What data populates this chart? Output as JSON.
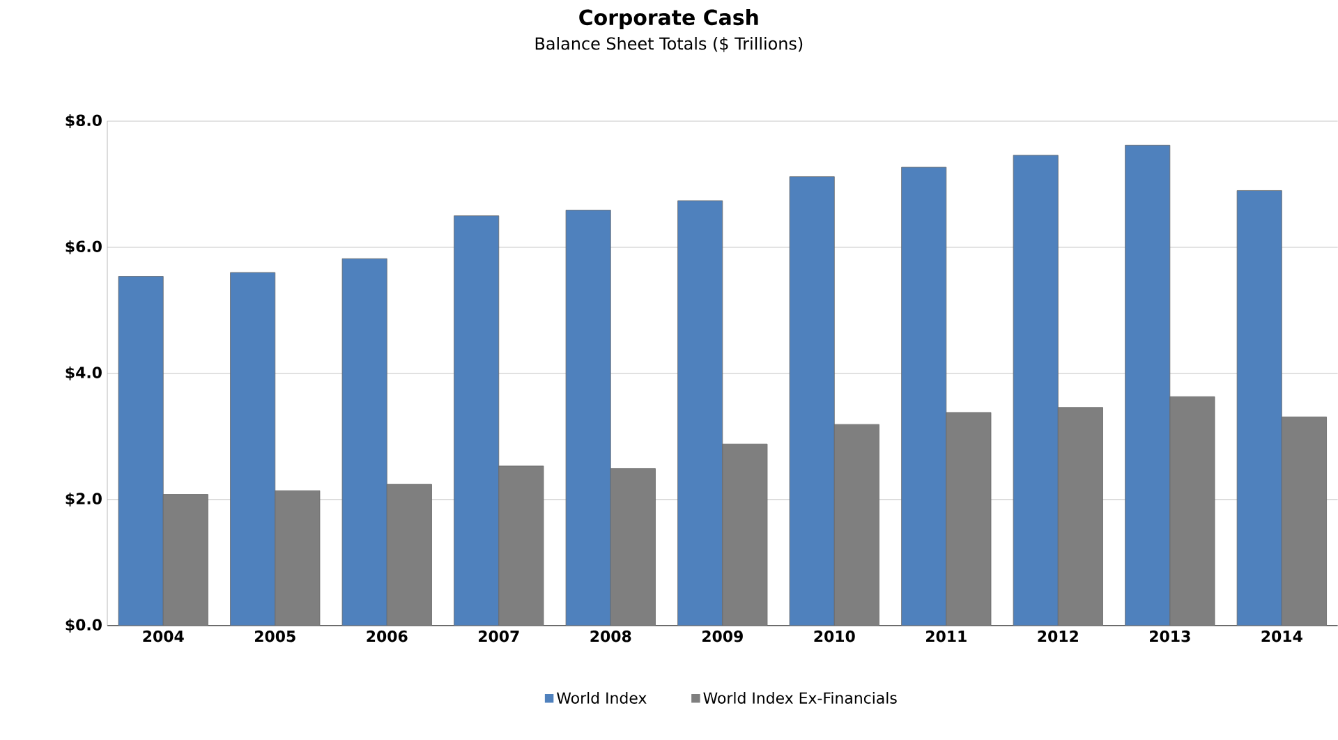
{
  "chart_data": {
    "type": "bar",
    "title": "Corporate Cash",
    "subtitle": "Balance Sheet Totals ($ Trillions)",
    "categories": [
      "2004",
      "2005",
      "2006",
      "2007",
      "2008",
      "2009",
      "2010",
      "2011",
      "2012",
      "2013",
      "2014"
    ],
    "series": [
      {
        "name": "World Index",
        "color": "#4f81bd",
        "values": [
          5.54,
          5.6,
          5.82,
          6.5,
          6.59,
          6.74,
          7.12,
          7.27,
          7.46,
          7.62,
          6.9
        ]
      },
      {
        "name": "World Index Ex-Financials",
        "color": "#7f7f7f",
        "values": [
          2.08,
          2.14,
          2.24,
          2.53,
          2.49,
          2.88,
          3.19,
          3.38,
          3.46,
          3.63,
          3.31
        ]
      }
    ],
    "ylim": [
      0,
      8
    ],
    "yticks": [
      {
        "value": 0,
        "label": "$0.0"
      },
      {
        "value": 2,
        "label": "$2.0"
      },
      {
        "value": 4,
        "label": "$4.0"
      },
      {
        "value": 6,
        "label": "$6.0"
      },
      {
        "value": 8,
        "label": "$8.0"
      }
    ],
    "grid": "y",
    "legend": "bottom"
  }
}
